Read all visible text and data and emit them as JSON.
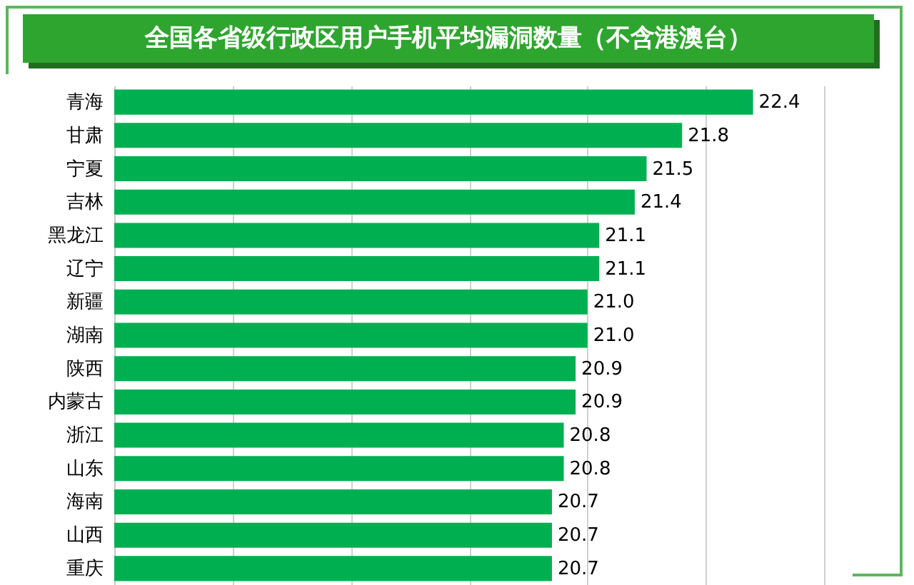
{
  "chart_data": {
    "type": "bar",
    "orientation": "horizontal",
    "title": "全国各省级行政区用户手机平均漏洞数量（不含港澳台）",
    "categories": [
      "青海",
      "甘肃",
      "宁夏",
      "吉林",
      "黑龙江",
      "辽宁",
      "新疆",
      "湖南",
      "陕西",
      "内蒙古",
      "浙江",
      "山东",
      "海南",
      "山西",
      "重庆"
    ],
    "values": [
      22.4,
      21.8,
      21.5,
      21.4,
      21.1,
      21.1,
      21.0,
      21.0,
      20.9,
      20.9,
      20.8,
      20.8,
      20.7,
      20.7,
      20.7
    ],
    "value_labels": [
      "22.4",
      "21.8",
      "21.5",
      "21.4",
      "21.1",
      "21.1",
      "21.0",
      "21.0",
      "20.9",
      "20.9",
      "20.8",
      "20.8",
      "20.7",
      "20.7",
      "20.7"
    ],
    "color": "#00b050",
    "xlim": [
      17,
      23
    ],
    "xticks": [
      {
        "value": 17,
        "label": null
      },
      {
        "value": 18,
        "label": null
      },
      {
        "value": 19,
        "label": null
      },
      {
        "value": 20,
        "label": null
      },
      {
        "value": 21,
        "label": null
      },
      {
        "value": 22,
        "label": null
      },
      {
        "value": 23,
        "label": null
      }
    ],
    "grid": "x",
    "tick_labels": "y"
  }
}
